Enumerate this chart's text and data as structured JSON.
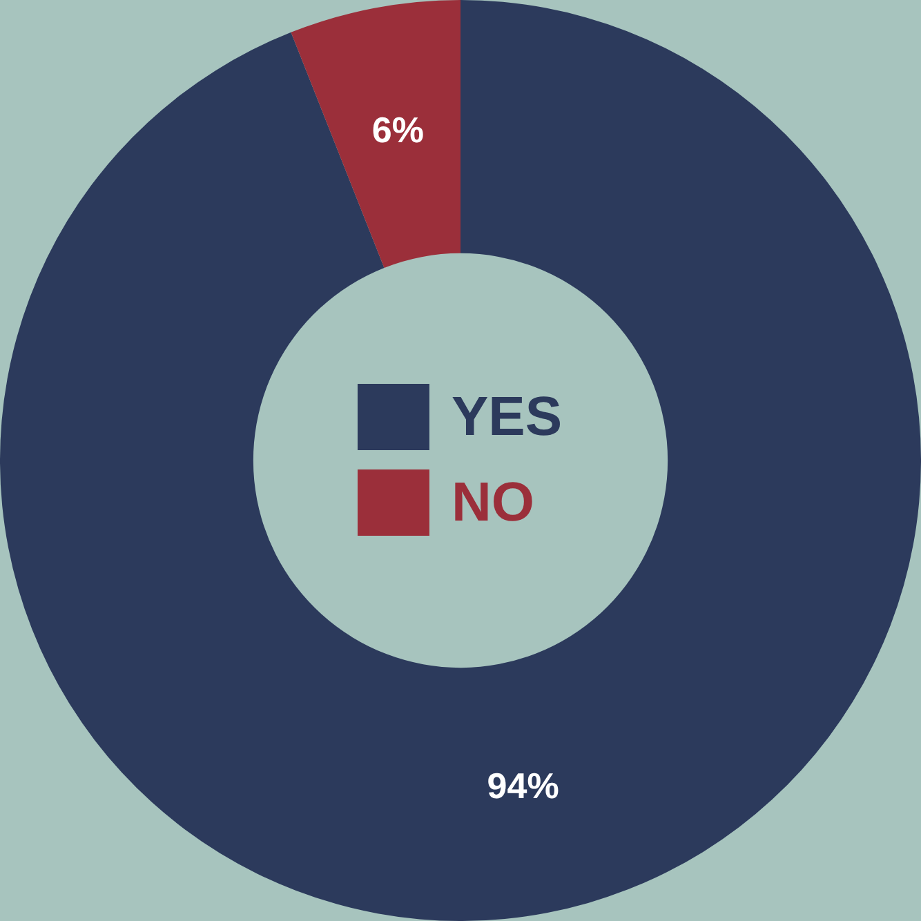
{
  "chart_data": {
    "type": "donut",
    "categories": [
      "YES",
      "NO"
    ],
    "values": [
      94,
      6
    ],
    "colors": [
      "#2c3a5c",
      "#9b2f3a"
    ],
    "value_labels": [
      "94%",
      "6%"
    ],
    "legend": "center"
  }
}
